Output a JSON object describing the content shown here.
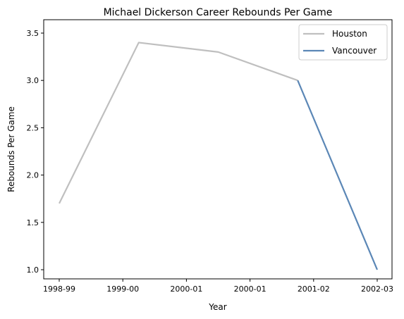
{
  "chart_data": {
    "type": "line",
    "title": "Michael Dickerson Career Rebounds Per Game",
    "xlabel": "Year",
    "ylabel": "Rebounds Per Game",
    "x_tick_labels": [
      "1998-99",
      "1999-00",
      "2000-01",
      "2000-01",
      "2001-02",
      "2002-03"
    ],
    "ylim": [
      0.9,
      3.55
    ],
    "y_ticks": [
      1.0,
      1.5,
      2.0,
      2.5,
      3.0,
      3.5
    ],
    "y_tick_labels": [
      "1.0",
      "1.5",
      "2.0",
      "2.5",
      "3.0",
      "3.5"
    ],
    "grid": false,
    "legend_position": "top-right",
    "series": [
      {
        "name": "Houston",
        "color": "#bfbfbf",
        "x_labels": [
          "1998-99",
          "1999-00",
          "2000-01",
          "2001-02"
        ],
        "values": [
          1.7,
          3.4,
          3.3,
          3.0
        ]
      },
      {
        "name": "Vancouver",
        "color": "#5b87b6",
        "x_labels": [
          "2001-02",
          "2002-03"
        ],
        "values": [
          3.0,
          1.0
        ]
      }
    ]
  }
}
